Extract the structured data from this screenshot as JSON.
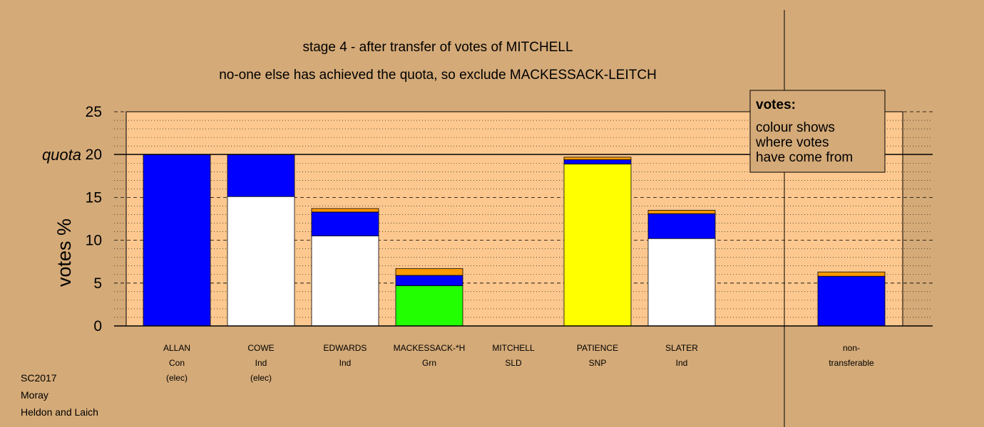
{
  "chart_data": {
    "type": "bar",
    "title": "stage 4 - after transfer of votes of MITCHELL",
    "subtitle": "no-one else has achieved the quota, so exclude MACKESSACK-LEITCH",
    "ylabel": "votes %",
    "ylim": [
      0,
      25
    ],
    "yticks": [
      "0",
      "5",
      "10",
      "15",
      "20",
      "25"
    ],
    "quota_value": 20,
    "quota_label": "quota",
    "colors": {
      "background": "#d4aa78",
      "plot": "#fdc88f",
      "Con": "#0000ff",
      "Ind": "#ffffff",
      "Grn": "#22ff00",
      "SNP": "#ffff00",
      "SLD": "#ff9a00",
      "Other": "#ff9a00"
    },
    "categories": [
      {
        "name": "ALLAN",
        "party": "Con",
        "note": "(elec)",
        "segments": [
          {
            "source": "Con",
            "value": 20.0
          }
        ]
      },
      {
        "name": "COWE",
        "party": "Ind",
        "note": "(elec)",
        "segments": [
          {
            "source": "Ind",
            "value": 15.1
          },
          {
            "source": "Con",
            "value": 4.9
          }
        ]
      },
      {
        "name": "EDWARDS",
        "party": "Ind",
        "note": "",
        "segments": [
          {
            "source": "Ind",
            "value": 10.5
          },
          {
            "source": "Con",
            "value": 2.8
          },
          {
            "source": "SLD",
            "value": 0.4
          }
        ]
      },
      {
        "name": "MACKESSACK-*H",
        "party": "Grn",
        "note": "",
        "segments": [
          {
            "source": "Grn",
            "value": 4.7
          },
          {
            "source": "Con",
            "value": 1.2
          },
          {
            "source": "SLD",
            "value": 0.8
          }
        ]
      },
      {
        "name": "MITCHELL",
        "party": "SLD",
        "note": "",
        "segments": []
      },
      {
        "name": "PATIENCE",
        "party": "SNP",
        "note": "",
        "segments": [
          {
            "source": "SNP",
            "value": 18.9
          },
          {
            "source": "Con",
            "value": 0.5
          },
          {
            "source": "SLD",
            "value": 0.3
          }
        ]
      },
      {
        "name": "SLATER",
        "party": "Ind",
        "note": "",
        "segments": [
          {
            "source": "Ind",
            "value": 10.2
          },
          {
            "source": "Con",
            "value": 2.9
          },
          {
            "source": "SLD",
            "value": 0.4
          }
        ]
      }
    ],
    "nontransferable": {
      "label_line1": "non-",
      "label_line2": "transferable",
      "segments": [
        {
          "source": "Con",
          "value": 5.8
        },
        {
          "source": "SLD",
          "value": 0.5
        }
      ]
    },
    "legend": {
      "title": "votes:",
      "lines": [
        "colour shows",
        "where votes",
        "have come from"
      ]
    }
  },
  "footer": [
    "SC2017",
    "Moray",
    "Heldon and Laich"
  ]
}
